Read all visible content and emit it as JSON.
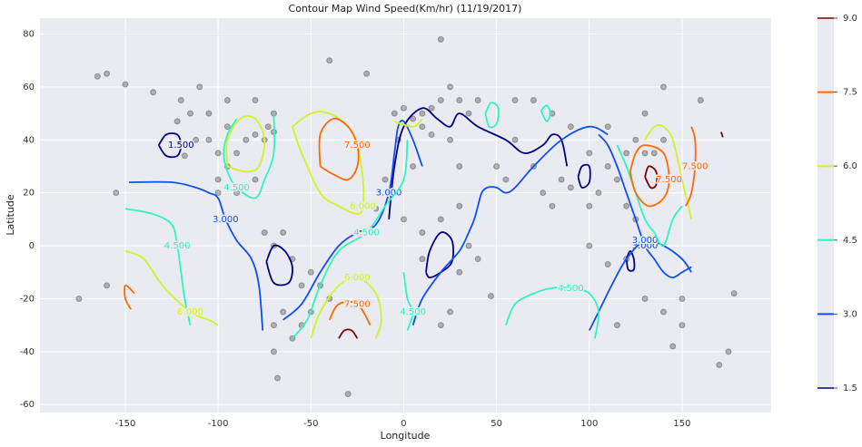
{
  "chart_data": {
    "type": "contour",
    "title": "Contour Map Wind Speed(Km/hr) (11/19/2017)",
    "xlabel": "Longitude",
    "ylabel": "Latitude",
    "xlim": [
      -196,
      198
    ],
    "ylim": [
      -63,
      86
    ],
    "xticks": [
      -150,
      -100,
      -50,
      0,
      50,
      100,
      150
    ],
    "yticks": [
      -60,
      -40,
      -20,
      0,
      20,
      40,
      60,
      80
    ],
    "grid": true,
    "colorbar": {
      "lim": [
        1.5,
        9.0
      ],
      "ticks": [
        1.5,
        {
          "value": 3,
          "label": "3.0"
        },
        4.5,
        {
          "value": 6,
          "label": "6.0"
        },
        7.5,
        {
          "value": 9,
          "label": "9.0"
        }
      ],
      "colors": [
        "#00007f",
        "#0d50f0",
        "#2ef5c0",
        "#cff527",
        "#ff6a00",
        "#7f0000"
      ]
    },
    "scatter": {
      "color": "#3a3a3a",
      "x": [
        -122,
        -118,
        -112,
        -105,
        -100,
        -95,
        -90,
        -85,
        -80,
        -75,
        -73,
        -70,
        -95,
        -105,
        -115,
        -120,
        -135,
        -150,
        -160,
        -165,
        -110,
        -95,
        -80,
        -70,
        -100,
        -90,
        -80,
        -100,
        -75,
        -70,
        -60,
        -50,
        -45,
        -40,
        -50,
        -55,
        -60,
        -65,
        -70,
        -70,
        -68,
        -65,
        -55,
        -5,
        0,
        5,
        10,
        15,
        20,
        25,
        30,
        35,
        40,
        10,
        15,
        -3,
        25,
        -15,
        0,
        10,
        20,
        30,
        35,
        30,
        25,
        20,
        10,
        40,
        5,
        30,
        -10,
        47,
        50,
        55,
        60,
        70,
        75,
        80,
        85,
        90,
        100,
        105,
        110,
        115,
        120,
        125,
        130,
        135,
        140,
        100,
        90,
        80,
        70,
        60,
        110,
        130,
        140,
        160,
        120,
        110,
        100,
        125,
        120,
        115,
        130,
        140,
        150,
        145,
        175,
        170,
        150,
        178,
        -175,
        -155,
        -160,
        -30,
        -20,
        -40,
        20
      ],
      "y": [
        47,
        34,
        40,
        40,
        35,
        30,
        35,
        40,
        42,
        40,
        45,
        43,
        45,
        50,
        50,
        55,
        58,
        61,
        65,
        64,
        60,
        55,
        55,
        50,
        25,
        20,
        25,
        20,
        5,
        0,
        -5,
        -10,
        -15,
        -20,
        -25,
        -30,
        -35,
        -25,
        -30,
        -40,
        -50,
        5,
        -15,
        50,
        52,
        48,
        50,
        52,
        55,
        60,
        55,
        50,
        55,
        45,
        42,
        40,
        40,
        14,
        10,
        5,
        10,
        15,
        0,
        -10,
        -25,
        -30,
        -5,
        -5,
        30,
        30,
        25,
        -19,
        30,
        25,
        40,
        30,
        20,
        15,
        25,
        22,
        15,
        20,
        30,
        25,
        35,
        40,
        35,
        35,
        40,
        35,
        45,
        50,
        55,
        55,
        45,
        50,
        60,
        55,
        -5,
        -7,
        0,
        10,
        15,
        -30,
        -20,
        -25,
        -30,
        -38,
        -40,
        -45,
        -20,
        -18,
        -20,
        20,
        -15,
        -56,
        65,
        70,
        78
      ]
    },
    "contours": [
      {
        "color": "#00007f",
        "label": "1.500",
        "x": [
          -132,
          -128,
          -122,
          -120,
          -122,
          -128,
          -132
        ],
        "y": [
          38,
          42,
          42,
          38,
          34,
          34,
          38
        ]
      },
      {
        "color": "#00007f",
        "x": [
          -74,
          -70,
          -64,
          -60,
          -62,
          -70,
          -74
        ],
        "y": [
          -6,
          0,
          -2,
          -8,
          -14,
          -14,
          -6
        ]
      },
      {
        "color": "#00007f",
        "x": [
          12,
          14,
          20,
          26,
          26,
          20,
          14,
          12
        ],
        "y": [
          -10,
          -2,
          5,
          2,
          -6,
          -10,
          -12,
          -10
        ]
      },
      {
        "color": "#00007f",
        "x": [
          -8,
          -5,
          0,
          10,
          18,
          25,
          30,
          40,
          55,
          65,
          75,
          80,
          85,
          88
        ],
        "y": [
          10,
          30,
          45,
          52,
          48,
          45,
          50,
          45,
          40,
          35,
          38,
          42,
          40,
          30
        ]
      },
      {
        "color": "#00007f",
        "x": [
          94,
          96,
          100,
          100,
          96,
          94
        ],
        "y": [
          26,
          30,
          30,
          24,
          22,
          26
        ]
      },
      {
        "color": "#00007f",
        "x": [
          120,
          122,
          124,
          124,
          121,
          120
        ],
        "y": [
          -5,
          -2,
          -5,
          -9,
          -9,
          -5
        ]
      },
      {
        "color": "#7f0000",
        "x": [
          -35,
          -32,
          -28,
          -25
        ],
        "y": [
          -35,
          -32,
          -32,
          -35
        ]
      },
      {
        "color": "#7f0000",
        "x": [
          130,
          132,
          136,
          136,
          133,
          130
        ],
        "y": [
          26,
          30,
          28,
          23,
          22,
          26
        ]
      },
      {
        "color": "#7f0000",
        "x": [
          171,
          172
        ],
        "y": [
          43,
          41
        ]
      },
      {
        "color": "#0d50f0",
        "label": "3.000",
        "x": [
          -148,
          -125,
          -112,
          -105,
          -100,
          -96,
          -90,
          -82,
          -78,
          -76
        ],
        "y": [
          24,
          24,
          22,
          20,
          18,
          10,
          2,
          -5,
          -15,
          -32
        ]
      },
      {
        "color": "#0d50f0",
        "label": "3.000",
        "x": [
          -65,
          -55,
          -45,
          -35,
          -25,
          -15,
          -8,
          -5,
          -3,
          0,
          5,
          10
        ],
        "y": [
          -28,
          -22,
          -10,
          0,
          5,
          8,
          20,
          35,
          45,
          47,
          40,
          30
        ]
      },
      {
        "color": "#0d50f0",
        "x": [
          5,
          10,
          20,
          30,
          35,
          38,
          40,
          42,
          45,
          50,
          55,
          60,
          70,
          85,
          100,
          110
        ],
        "y": [
          -30,
          -20,
          -10,
          -2,
          5,
          10,
          15,
          20,
          22,
          22,
          20,
          22,
          30,
          40,
          45,
          42
        ]
      },
      {
        "color": "#0d50f0",
        "label": "3.000",
        "x": [
          105,
          110,
          115,
          120,
          125,
          130,
          135,
          140,
          145,
          150,
          155
        ],
        "y": [
          42,
          38,
          30,
          20,
          10,
          0,
          -5,
          -10,
          -12,
          -10,
          -8
        ]
      },
      {
        "color": "#0d50f0",
        "label": "3.000",
        "x": [
          100,
          105,
          112,
          120,
          130,
          140,
          150,
          155
        ],
        "y": [
          -32,
          -25,
          -15,
          -5,
          2,
          0,
          -5,
          -10
        ]
      },
      {
        "color": "#2ef5c0",
        "label": "4.500",
        "x": [
          -150,
          -135,
          -125,
          -122,
          -120,
          -118,
          -115
        ],
        "y": [
          14,
          12,
          8,
          0,
          -10,
          -20,
          -30
        ]
      },
      {
        "color": "#2ef5c0",
        "label": "4.500",
        "x": [
          -90,
          -95,
          -97,
          -95,
          -90,
          -80,
          -75,
          -70,
          -70
        ],
        "y": [
          48,
          42,
          35,
          28,
          22,
          18,
          25,
          35,
          50
        ]
      },
      {
        "color": "#2ef5c0",
        "label": "4.500",
        "x": [
          -60,
          -52,
          -45,
          -35,
          -20,
          -10,
          0,
          2
        ],
        "y": [
          -35,
          -28,
          -15,
          -2,
          5,
          15,
          25,
          40
        ]
      },
      {
        "color": "#2ef5c0",
        "label": "4.500",
        "x": [
          0,
          2,
          5,
          3,
          2
        ],
        "y": [
          -10,
          -20,
          -25,
          -30,
          -32
        ]
      },
      {
        "color": "#2ef5c0",
        "label": "4.500",
        "x": [
          55,
          60,
          70,
          80,
          90,
          100,
          105,
          103
        ],
        "y": [
          -30,
          -22,
          -18,
          -16,
          -16,
          -18,
          -25,
          -35
        ]
      },
      {
        "color": "#2ef5c0",
        "x": [
          44,
          47,
          51,
          50,
          46,
          44
        ],
        "y": [
          50,
          54,
          52,
          46,
          45,
          50
        ]
      },
      {
        "color": "#2ef5c0",
        "x": [
          74,
          77,
          79,
          77,
          74
        ],
        "y": [
          51,
          53,
          50,
          47,
          51
        ]
      },
      {
        "color": "#2ef5c0",
        "x": [
          115,
          120,
          125,
          130,
          135,
          140,
          145,
          150
        ],
        "y": [
          38,
          30,
          20,
          10,
          5,
          0,
          10,
          15
        ]
      },
      {
        "color": "#cff527",
        "label": "6.000",
        "x": [
          -150,
          -140,
          -130,
          -115,
          -105,
          -100
        ],
        "y": [
          -2,
          -5,
          -15,
          -25,
          -28,
          -30
        ]
      },
      {
        "color": "#cff527",
        "x": [
          -95,
          -95,
          -88,
          -80,
          -75,
          -78,
          -85,
          -95
        ],
        "y": [
          30,
          40,
          48,
          48,
          40,
          30,
          28,
          30
        ]
      },
      {
        "color": "#cff527",
        "label": "6.000",
        "x": [
          -60,
          -50,
          -40,
          -30,
          -25,
          -22,
          -22,
          -25,
          -35,
          -45,
          -55,
          -60
        ],
        "y": [
          45,
          50,
          50,
          45,
          38,
          25,
          15,
          12,
          15,
          20,
          35,
          45
        ]
      },
      {
        "color": "#cff527",
        "label": "6.000",
        "x": [
          -50,
          -45,
          -35,
          -25,
          -15,
          -12,
          -15
        ],
        "y": [
          -35,
          -25,
          -15,
          -12,
          -18,
          -28,
          -35
        ]
      },
      {
        "color": "#cff527",
        "x": [
          -5,
          5,
          10
        ],
        "y": [
          47,
          45,
          48
        ]
      },
      {
        "color": "#cff527",
        "x": [
          130,
          135,
          140,
          145,
          150,
          155
        ],
        "y": [
          40,
          45,
          45,
          40,
          25,
          10
        ]
      },
      {
        "color": "#ff6a00",
        "label": "7.500",
        "x": [
          -45,
          -45,
          -38,
          -30,
          -25,
          -25,
          -30,
          -38,
          -45
        ],
        "y": [
          30,
          42,
          48,
          45,
          38,
          30,
          25,
          27,
          30
        ]
      },
      {
        "color": "#ff6a00",
        "label": "7.500",
        "x": [
          -40,
          -35,
          -25,
          -18
        ],
        "y": [
          -28,
          -22,
          -22,
          -30
        ]
      },
      {
        "color": "#ff6a00",
        "x": [
          -147,
          -150,
          -150,
          -145
        ],
        "y": [
          -24,
          -20,
          -15,
          -18
        ]
      },
      {
        "color": "#ff6a00",
        "label": "7.500",
        "x": [
          122,
          125,
          130,
          140,
          143,
          140,
          132,
          125,
          122
        ],
        "y": [
          28,
          35,
          38,
          35,
          25,
          18,
          15,
          20,
          28
        ]
      },
      {
        "color": "#ff6a00",
        "label": "7.500",
        "x": [
          152,
          155,
          157,
          157,
          155
        ],
        "y": [
          15,
          20,
          30,
          40,
          45
        ]
      }
    ]
  }
}
